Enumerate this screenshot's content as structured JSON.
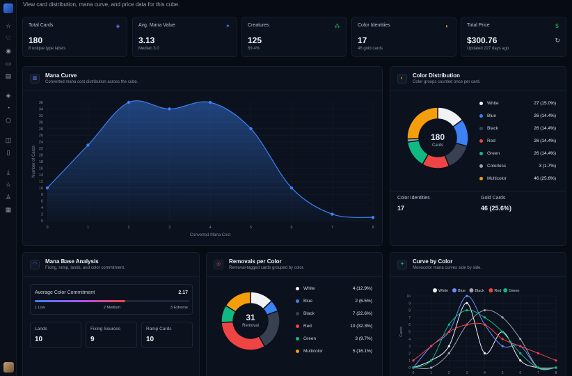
{
  "page": {
    "subtitle": "View card distribution, mana curve, and price data for this cube."
  },
  "sidebar": {
    "icons": [
      "star-icon",
      "heart-icon",
      "eye-icon",
      "book-icon",
      "map-icon",
      "layers-icon",
      "bell-icon",
      "cube-icon",
      "gamepad-icon",
      "book-open-icon",
      "download-icon",
      "star-outline-icon",
      "trophy-icon",
      "file-icon"
    ]
  },
  "stats": [
    {
      "title": "Total Cards",
      "value": "180",
      "sub": "8 unique type labels",
      "icon": "layers-icon",
      "color": "#7c6cf0"
    },
    {
      "title": "Avg. Mana Value",
      "value": "3.13",
      "sub": "Median 3.0",
      "icon": "sparkles-icon",
      "color": "#3b82f6"
    },
    {
      "title": "Creatures",
      "value": "125",
      "sub": "69.4%",
      "icon": "paw-icon",
      "color": "#22c55e"
    },
    {
      "title": "Color Identities",
      "value": "17",
      "sub": "46 gold cards",
      "icon": "palette-icon",
      "color": "#f59e0b"
    },
    {
      "title": "Total Price",
      "value": "$300.76",
      "sub": "Updated 227 days ago",
      "icon": "dollar-icon",
      "color": "#22c55e"
    }
  ],
  "mana_curve": {
    "title": "Mana Curve",
    "subtitle": "Converted mana cost distribution across the cube.",
    "chart_data": {
      "type": "area",
      "x": [
        0,
        1,
        2,
        3,
        4,
        5,
        6,
        7,
        8
      ],
      "y": [
        10,
        23,
        36,
        34,
        36,
        28,
        10,
        2,
        1
      ],
      "xlabel": "Converted Mana Cost",
      "ylabel": "Number of Cards",
      "yticks": [
        0,
        2,
        4,
        6,
        8,
        10,
        12,
        14,
        16,
        18,
        20,
        22,
        24,
        26,
        28,
        30,
        32,
        34,
        36
      ],
      "ylim": [
        0,
        36
      ],
      "color": "#3b82f6"
    }
  },
  "color_distribution": {
    "title": "Color Distribution",
    "subtitle": "Color groups counted once per card.",
    "center_value": "180",
    "center_label": "Cards",
    "chart_data": {
      "type": "pie",
      "labels": [
        "White",
        "Blue",
        "Black",
        "Red",
        "Green",
        "Colorless",
        "Multicolor"
      ],
      "values": [
        27,
        26,
        26,
        26,
        26,
        3,
        46
      ],
      "display": [
        "27 (15.0%)",
        "26 (14.4%)",
        "26 (14.4%)",
        "26 (14.4%)",
        "26 (14.4%)",
        "3 (1.7%)",
        "46 (25.6%)"
      ],
      "colors": [
        "#f1f2f4",
        "#3b82f6",
        "#374151",
        "#ef4444",
        "#10b981",
        "#9ca3af",
        "#f59e0b"
      ]
    },
    "footer": [
      {
        "label": "Color Identities",
        "value": "17"
      },
      {
        "label": "Gold Cards",
        "value": "46 (25.6%)"
      }
    ]
  },
  "mana_base": {
    "title": "Mana Base Analysis",
    "subtitle": "Fixing, ramp, lands, and color commitment.",
    "commitment_label": "Average Color Commitment",
    "commitment_value": "2.17",
    "commitment_fraction": 0.585,
    "scale": [
      "1 Low",
      "2 Medium",
      "3 Extreme"
    ],
    "tiles": [
      {
        "label": "Lands",
        "value": "10"
      },
      {
        "label": "Fixing Sources",
        "value": "9"
      },
      {
        "label": "Ramp Cards",
        "value": "10"
      }
    ]
  },
  "removals": {
    "title": "Removals per Color",
    "subtitle": "Removal-tagged cards grouped by color.",
    "center_value": "31",
    "center_label": "Removal",
    "chart_data": {
      "type": "pie",
      "labels": [
        "White",
        "Blue",
        "Black",
        "Red",
        "Green",
        "Multicolor"
      ],
      "values": [
        4,
        2,
        7,
        10,
        3,
        5
      ],
      "display": [
        "4 (12.9%)",
        "2 (6.5%)",
        "7 (22.6%)",
        "10 (32.3%)",
        "3 (9.7%)",
        "5 (16.1%)"
      ],
      "colors": [
        "#f1f2f4",
        "#3b82f6",
        "#374151",
        "#ef4444",
        "#10b981",
        "#f59e0b"
      ]
    }
  },
  "curve_by_color": {
    "title": "Curve by Color",
    "subtitle": "Monocolor mana curves side by side.",
    "chart_data": {
      "type": "line",
      "x": [
        0,
        1,
        2,
        3,
        4,
        5,
        6,
        7,
        8
      ],
      "ylabel": "Cards",
      "ylim": [
        0,
        10
      ],
      "yticks": [
        0,
        1,
        2,
        3,
        4,
        5,
        6,
        7,
        8,
        9,
        10
      ],
      "series": [
        {
          "name": "White",
          "color": "#f1f2f4",
          "values": [
            0,
            1,
            3,
            9,
            2,
            5,
            1,
            0,
            0
          ]
        },
        {
          "name": "Blue",
          "color": "#6b8cff",
          "values": [
            0,
            3,
            5,
            10,
            6,
            3,
            3,
            0,
            0
          ]
        },
        {
          "name": "Black",
          "color": "#9ca3af",
          "values": [
            0,
            0,
            2,
            6,
            8,
            7,
            4,
            0,
            0
          ]
        },
        {
          "name": "Red",
          "color": "#ef4444",
          "values": [
            1,
            3,
            5,
            6,
            6,
            4,
            3,
            2,
            1
          ]
        },
        {
          "name": "Green",
          "color": "#10b981",
          "values": [
            0,
            1,
            6,
            8,
            7,
            5,
            2,
            0,
            0
          ]
        }
      ]
    }
  }
}
